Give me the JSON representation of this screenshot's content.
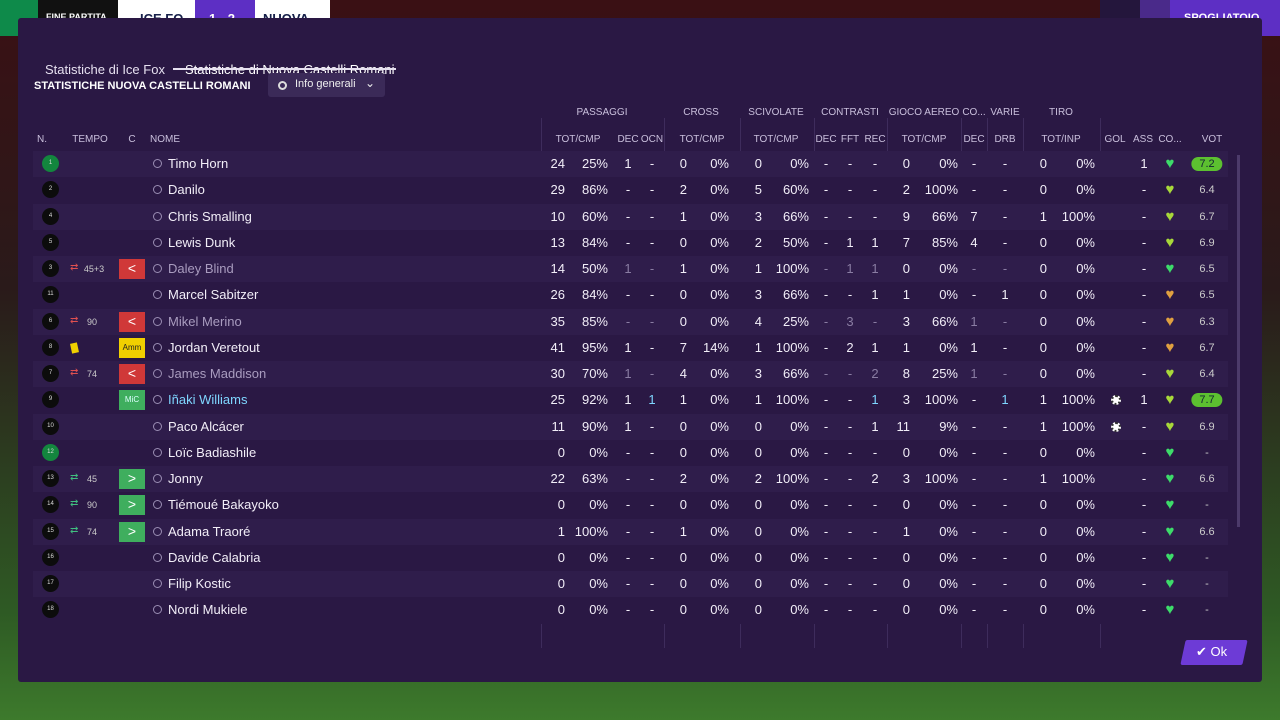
{
  "topbar": {
    "status": "FINE PARTITA",
    "home": "ICE FO",
    "score": "1 - 2",
    "away": "NUOVA",
    "action": "SPOGLIATOIO"
  },
  "tabs": [
    "Statistiche di Ice Fox",
    "Statistiche di Nuova Castelli Romani"
  ],
  "section_title": "STATISTICHE NUOVA CASTELLI ROMANI",
  "dropdown": "Info generali",
  "group_headers": [
    "PASSAGGI",
    "CROSS",
    "SCIVOLATE",
    "CONTRASTI",
    "GIOCO AEREO",
    "CO...",
    "VARIE",
    "TIRO"
  ],
  "columns": [
    "N.",
    "TEMPO",
    "C",
    "NOME",
    "TOT/CMP",
    "DEC",
    "OCN",
    "TOT/CMP",
    "TOT/CMP",
    "DEC",
    "FFT",
    "REC",
    "TOT/CMP",
    "DEC",
    "DRB",
    "TOT/INP",
    "GOL",
    "ASS",
    "CO...",
    "VOT"
  ],
  "rows": [
    {
      "n": "1",
      "name": "Timo Horn",
      "cond": "#3ddc6a",
      "cells": [
        "24",
        "25%",
        "1",
        "-",
        "0",
        "0%",
        "0",
        "0%",
        "-",
        "-",
        "-",
        "0",
        "0%",
        "-",
        "-",
        "0",
        "0%",
        "1",
        "7.2"
      ]
    },
    {
      "n": "2",
      "name": "Danilo",
      "cond": "#a8d83a",
      "cells": [
        "29",
        "86%",
        "-",
        "-",
        "2",
        "0%",
        "5",
        "60%",
        "-",
        "-",
        "-",
        "2",
        "100%",
        "-",
        "-",
        "0",
        "0%",
        "-",
        "6.4"
      ]
    },
    {
      "n": "4",
      "name": "Chris Smalling",
      "cond": "#a8d83a",
      "cells": [
        "10",
        "60%",
        "-",
        "-",
        "1",
        "0%",
        "3",
        "66%",
        "-",
        "-",
        "-",
        "9",
        "66%",
        "7",
        "-",
        "1",
        "100%",
        "-",
        "6.7"
      ]
    },
    {
      "n": "5",
      "name": "Lewis Dunk",
      "cond": "#a8d83a",
      "cells": [
        "13",
        "84%",
        "-",
        "-",
        "0",
        "0%",
        "2",
        "50%",
        "-",
        "1",
        "1",
        "7",
        "85%",
        "4",
        "-",
        "0",
        "0%",
        "-",
        "6.9"
      ]
    },
    {
      "n": "3",
      "time": "45+3",
      "sub": "out",
      "name": "Daley Blind",
      "cond": "#3ddc6a",
      "cells": [
        "14",
        "50%",
        "1",
        "-",
        "1",
        "0%",
        "1",
        "100%",
        "-",
        "1",
        "1",
        "0",
        "0%",
        "-",
        "-",
        "0",
        "0%",
        "-",
        "6.5"
      ]
    },
    {
      "n": "11",
      "name": "Marcel Sabitzer",
      "cond": "#e0a040",
      "cells": [
        "26",
        "84%",
        "-",
        "-",
        "0",
        "0%",
        "3",
        "66%",
        "-",
        "-",
        "1",
        "1",
        "0%",
        "-",
        "1",
        "0",
        "0%",
        "-",
        "6.5"
      ]
    },
    {
      "n": "6",
      "time": "90",
      "sub": "out",
      "name": "Mikel Merino",
      "cond": "#e0a040",
      "cells": [
        "35",
        "85%",
        "-",
        "-",
        "0",
        "0%",
        "4",
        "25%",
        "-",
        "3",
        "-",
        "3",
        "66%",
        "1",
        "-",
        "0",
        "0%",
        "-",
        "6.3"
      ]
    },
    {
      "n": "8",
      "card": "#f0d000",
      "badge": "Amm",
      "name": "Jordan Veretout",
      "cond": "#e0a040",
      "cells": [
        "41",
        "95%",
        "1",
        "-",
        "7",
        "14%",
        "1",
        "100%",
        "-",
        "2",
        "1",
        "1",
        "0%",
        "1",
        "-",
        "0",
        "0%",
        "-",
        "6.7"
      ]
    },
    {
      "n": "7",
      "time": "74",
      "sub": "out",
      "name": "James Maddison",
      "cond": "#a8d83a",
      "cells": [
        "30",
        "70%",
        "1",
        "-",
        "4",
        "0%",
        "3",
        "66%",
        "-",
        "-",
        "2",
        "8",
        "25%",
        "1",
        "-",
        "0",
        "0%",
        "-",
        "6.4"
      ]
    },
    {
      "n": "9",
      "badge": "MiC",
      "name": "Iñaki Williams",
      "scored": true,
      "cond": "#a8d83a",
      "cells": [
        "25",
        "92%",
        "1",
        "1",
        "1",
        "0%",
        "1",
        "100%",
        "-",
        "-",
        "1",
        "3",
        "100%",
        "-",
        "1",
        "1",
        "100%",
        "1",
        "7.7"
      ]
    },
    {
      "n": "10",
      "name": "Paco Alcácer",
      "scored": true,
      "cond": "#a8d83a",
      "cells": [
        "11",
        "90%",
        "1",
        "-",
        "0",
        "0%",
        "0",
        "0%",
        "-",
        "-",
        "1",
        "11",
        "9%",
        "-",
        "-",
        "1",
        "100%",
        "-",
        "6.9"
      ]
    },
    {
      "n": "12",
      "name": "Loïc Badiashile",
      "cond": "#3ddc6a",
      "cells": [
        "0",
        "0%",
        "-",
        "-",
        "0",
        "0%",
        "0",
        "0%",
        "-",
        "-",
        "-",
        "0",
        "0%",
        "-",
        "-",
        "0",
        "0%",
        "-",
        "-"
      ]
    },
    {
      "n": "13",
      "time": "45",
      "sub": "in",
      "name": "Jonny",
      "cond": "#3ddc6a",
      "cells": [
        "22",
        "63%",
        "-",
        "-",
        "2",
        "0%",
        "2",
        "100%",
        "-",
        "-",
        "2",
        "3",
        "100%",
        "-",
        "-",
        "1",
        "100%",
        "-",
        "6.6"
      ]
    },
    {
      "n": "14",
      "time": "90",
      "sub": "in",
      "name": "Tiémoué Bakayoko",
      "cond": "#3ddc6a",
      "cells": [
        "0",
        "0%",
        "-",
        "-",
        "0",
        "0%",
        "0",
        "0%",
        "-",
        "-",
        "-",
        "0",
        "0%",
        "-",
        "-",
        "0",
        "0%",
        "-",
        "-"
      ]
    },
    {
      "n": "15",
      "time": "74",
      "sub": "in",
      "name": "Adama Traoré",
      "cond": "#3ddc6a",
      "cells": [
        "1",
        "100%",
        "-",
        "-",
        "1",
        "0%",
        "0",
        "0%",
        "-",
        "-",
        "-",
        "1",
        "0%",
        "-",
        "-",
        "0",
        "0%",
        "-",
        "6.6"
      ]
    },
    {
      "n": "16",
      "name": "Davide Calabria",
      "cond": "#3ddc6a",
      "cells": [
        "0",
        "0%",
        "-",
        "-",
        "0",
        "0%",
        "0",
        "0%",
        "-",
        "-",
        "-",
        "0",
        "0%",
        "-",
        "-",
        "0",
        "0%",
        "-",
        "-"
      ]
    },
    {
      "n": "17",
      "name": "Filip Kostic",
      "cond": "#3ddc6a",
      "cells": [
        "0",
        "0%",
        "-",
        "-",
        "0",
        "0%",
        "0",
        "0%",
        "-",
        "-",
        "-",
        "0",
        "0%",
        "-",
        "-",
        "0",
        "0%",
        "-",
        "-"
      ]
    },
    {
      "n": "18",
      "name": "Nordi Mukiele",
      "cond": "#3ddc6a",
      "cells": [
        "0",
        "0%",
        "-",
        "-",
        "0",
        "0%",
        "0",
        "0%",
        "-",
        "-",
        "-",
        "0",
        "0%",
        "-",
        "-",
        "0",
        "0%",
        "-",
        "-"
      ]
    }
  ],
  "ok_button": "Ok"
}
